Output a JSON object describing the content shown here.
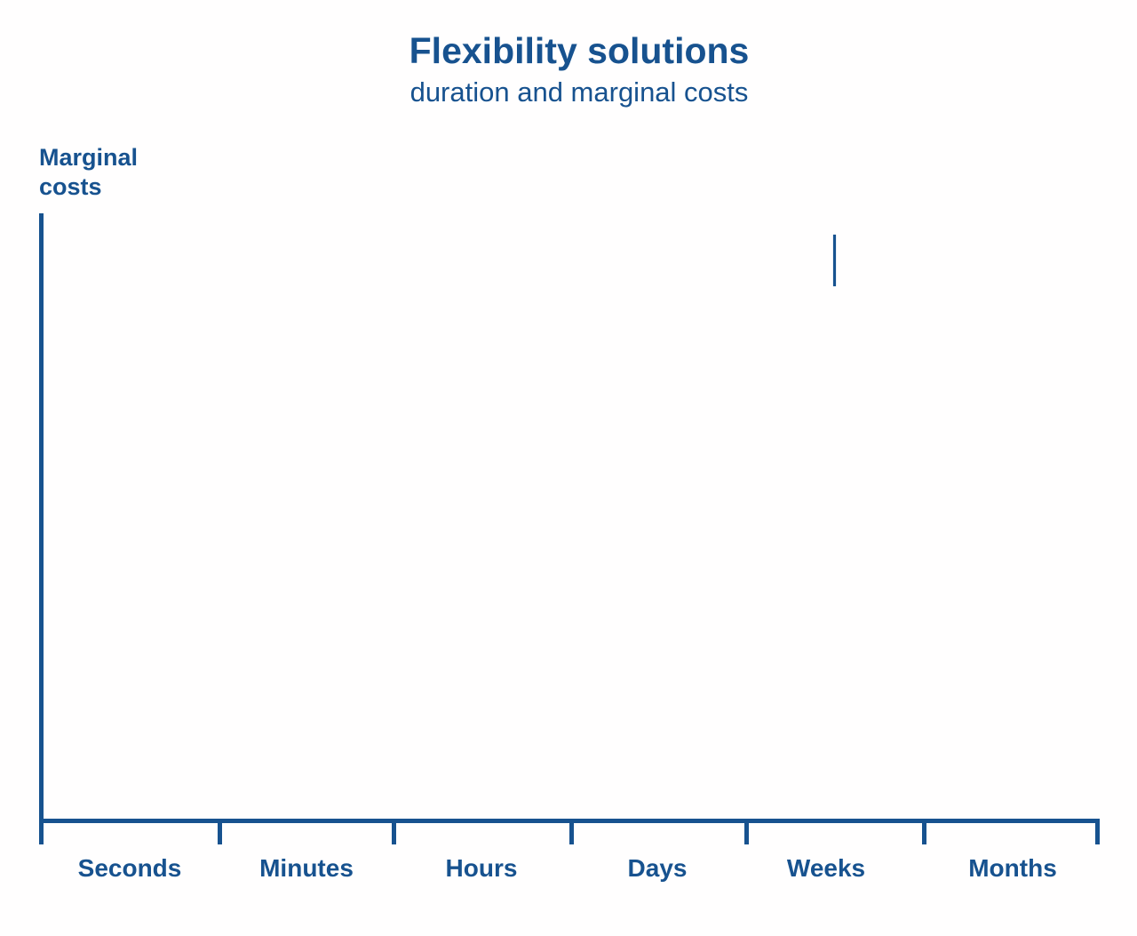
{
  "colors": {
    "accent_blue": "#17528f",
    "background": "#ffffff"
  },
  "header": {
    "title": "Flexibility solutions",
    "subtitle": "duration and marginal costs"
  },
  "y_axis": {
    "label_line1": "Marginal",
    "label_line2": "costs"
  },
  "x_axis": {
    "categories": [
      "Seconds",
      "Minutes",
      "Hours",
      "Days",
      "Weeks",
      "Months"
    ]
  },
  "chart_data": {
    "type": "line",
    "title": "Flexibility solutions",
    "subtitle": "duration and marginal costs",
    "xlabel": "",
    "ylabel": "Marginal costs",
    "categories": [
      "Seconds",
      "Minutes",
      "Hours",
      "Days",
      "Weeks",
      "Months"
    ],
    "series": [],
    "grid": false,
    "legend": false,
    "axis_style": "unlabeled conceptual axes, no numeric ticks",
    "annotations": [
      {
        "type": "vertical-stroke",
        "near_category": "Weeks",
        "description": "short vertical line segment floating in the upper plot area above the Weeks region (in-progress drawing frame); no other data drawn"
      }
    ]
  }
}
